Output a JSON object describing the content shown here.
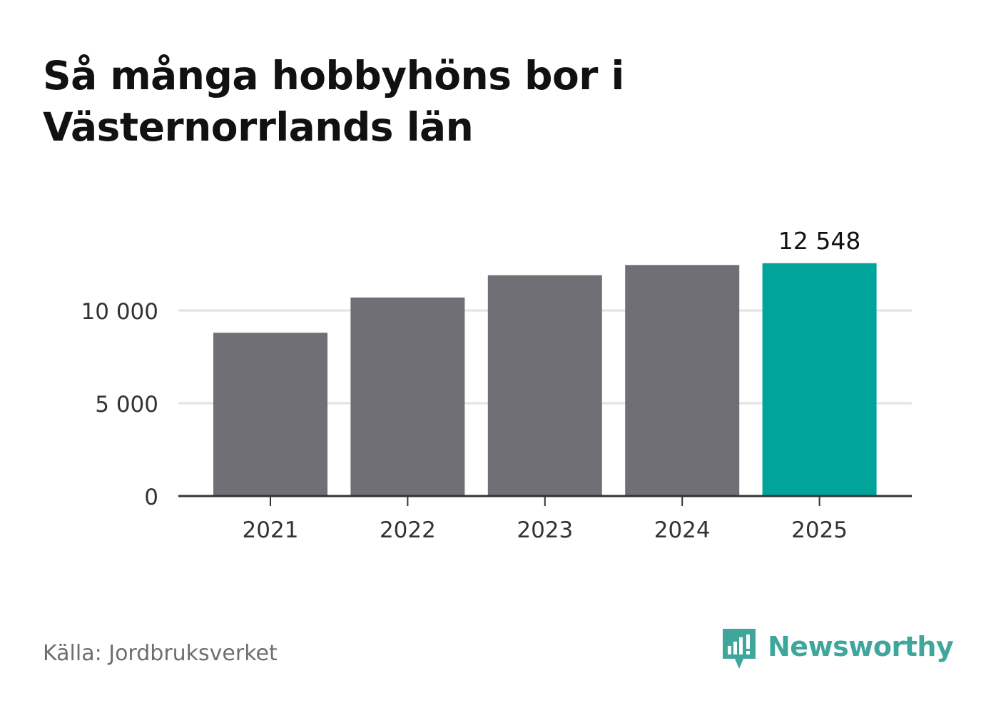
{
  "title": "Så många hobbyhöns bor i Västernorrlands län",
  "source": "Källa: Jordbruksverket",
  "brand": {
    "name": "Newsworthy",
    "icon": "newsworthy-logo-icon"
  },
  "colors": {
    "bar_default": "#706f75",
    "bar_highlight": "#00a49a",
    "grid": "#e2e2e2",
    "axis": "#333333",
    "brand": "#3fa69c"
  },
  "chart_data": {
    "type": "bar",
    "categories": [
      "2021",
      "2022",
      "2023",
      "2024",
      "2025"
    ],
    "values": [
      8800,
      10700,
      11900,
      12450,
      12548
    ],
    "highlight_index": 4,
    "data_labels": [
      {
        "index": 4,
        "text": "12 548"
      }
    ],
    "yticks": [
      {
        "value": 0,
        "label": "0"
      },
      {
        "value": 5000,
        "label": "5 000"
      },
      {
        "value": 10000,
        "label": "10 000"
      }
    ],
    "ylim": [
      0,
      14000
    ],
    "grid": true,
    "xlabel": "",
    "ylabel": ""
  }
}
